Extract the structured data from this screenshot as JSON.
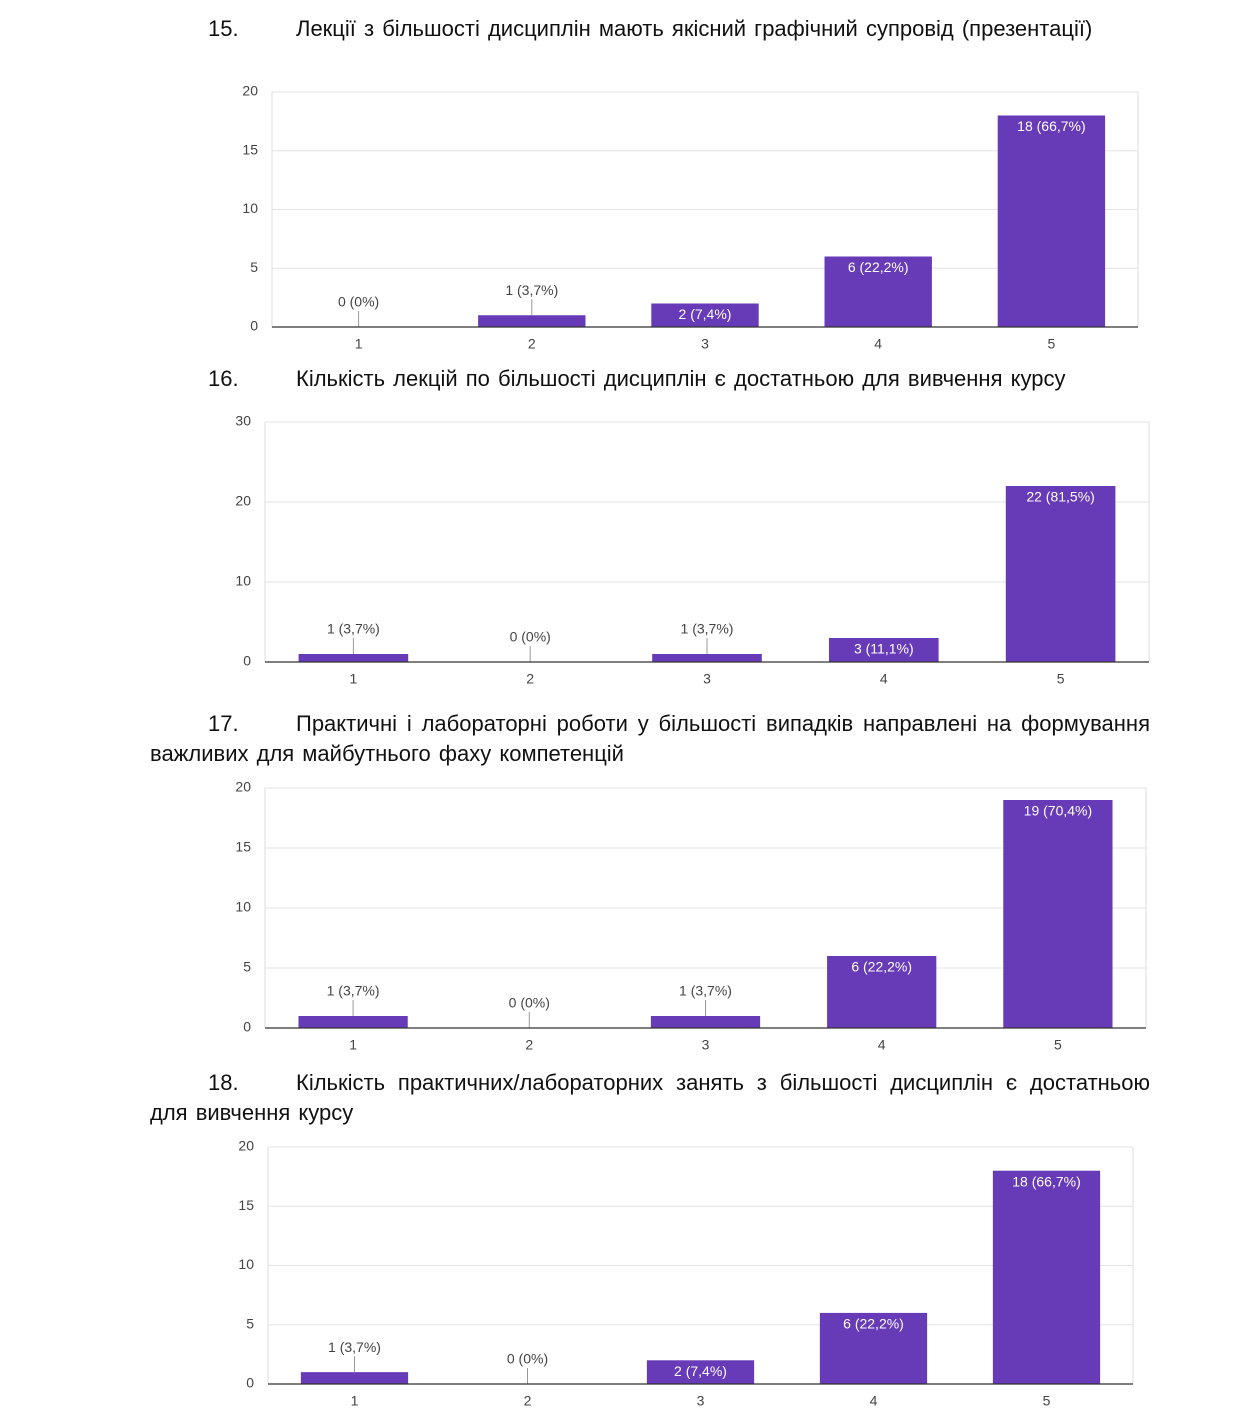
{
  "chart_data": [
    {
      "type": "bar",
      "number": "15.",
      "title": "Лекції з більшості дисциплін мають якісний графічний супровід (презентації)",
      "categories": [
        "1",
        "2",
        "3",
        "4",
        "5"
      ],
      "values": [
        0,
        1,
        2,
        6,
        18
      ],
      "value_labels": [
        "0 (0%)",
        "1 (3,7%)",
        "2 (7,4%)",
        "6 (22,2%)",
        "18 (66,7%)"
      ],
      "color": "#673ab7",
      "ylim": [
        0,
        20
      ],
      "yticks": [
        0,
        5,
        10,
        15,
        20
      ],
      "grid": true
    },
    {
      "type": "bar",
      "number": "16.",
      "title": "Кількість лекцій по більшості дисциплін є достатньою для вивчення курсу",
      "categories": [
        "1",
        "2",
        "3",
        "4",
        "5"
      ],
      "values": [
        1,
        0,
        1,
        3,
        22
      ],
      "value_labels": [
        "1 (3,7%)",
        "0 (0%)",
        "1 (3,7%)",
        "3 (11,1%)",
        "22 (81,5%)"
      ],
      "color": "#673ab7",
      "ylim": [
        0,
        30
      ],
      "yticks": [
        0,
        10,
        20,
        30
      ],
      "grid": true
    },
    {
      "type": "bar",
      "number": "17.",
      "title": "Практичні і лабораторні роботи у більшості випадків направлені на формування важливих для майбутнього фаху компетенцій",
      "categories": [
        "1",
        "2",
        "3",
        "4",
        "5"
      ],
      "values": [
        1,
        0,
        1,
        6,
        19
      ],
      "value_labels": [
        "1 (3,7%)",
        "0 (0%)",
        "1 (3,7%)",
        "6 (22,2%)",
        "19 (70,4%)"
      ],
      "color": "#673ab7",
      "ylim": [
        0,
        20
      ],
      "yticks": [
        0,
        5,
        10,
        15,
        20
      ],
      "grid": true
    },
    {
      "type": "bar",
      "number": "18.",
      "title": "Кількість практичних/лабораторних занять з більшості дисциплін є достатньою для вивчення курсу",
      "categories": [
        "1",
        "2",
        "3",
        "4",
        "5"
      ],
      "values": [
        1,
        0,
        2,
        6,
        18
      ],
      "value_labels": [
        "1 (3,7%)",
        "0 (0%)",
        "2 (7,4%)",
        "6 (22,2%)",
        "18 (66,7%)"
      ],
      "color": "#673ab7",
      "ylim": [
        0,
        20
      ],
      "yticks": [
        0,
        5,
        10,
        15,
        20
      ],
      "grid": true
    }
  ]
}
